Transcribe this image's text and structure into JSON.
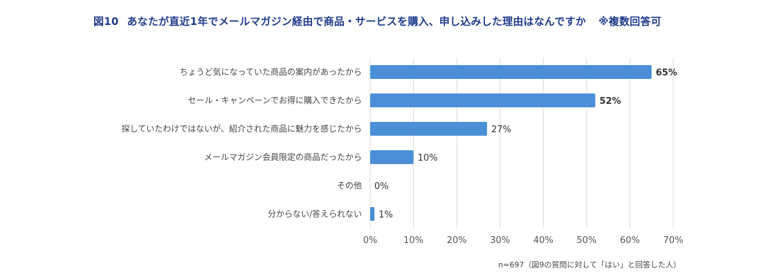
{
  "header": {
    "number": "図10",
    "title": "あなたが直近1年でメールマガジン経由で商品・サービスを購入、申し込みした理由はなんですか",
    "subtitle": "※複数回答可"
  },
  "footnote": "n=697（図9の質問に対して「はい」と回答した人）",
  "colors": {
    "bar": "#4a8fd8",
    "grid": "#d9d9d9",
    "title": "#1f3c8c"
  },
  "chart_data": {
    "type": "bar",
    "orientation": "horizontal",
    "categories": [
      "ちょうど気になっていた商品の案内があったから",
      "セール・キャンペーンでお得に購入できたから",
      "探していたわけではないが、紹介された商品に魅力を感じたから",
      "メールマガジン会員限定の商品だったから",
      "その他",
      "分からない/答えられない"
    ],
    "values": [
      65,
      52,
      27,
      10,
      0,
      1
    ],
    "value_labels": [
      "65%",
      "52%",
      "27%",
      "10%",
      "0%",
      "1%"
    ],
    "emphasized_labels": [
      true,
      true,
      false,
      false,
      false,
      false
    ],
    "xlim": [
      0,
      70
    ],
    "xticks": [
      "0%",
      "10%",
      "20%",
      "30%",
      "40%",
      "50%",
      "60%",
      "70%"
    ],
    "xlabel": "",
    "ylabel": "",
    "grid": true,
    "legend": "none"
  }
}
